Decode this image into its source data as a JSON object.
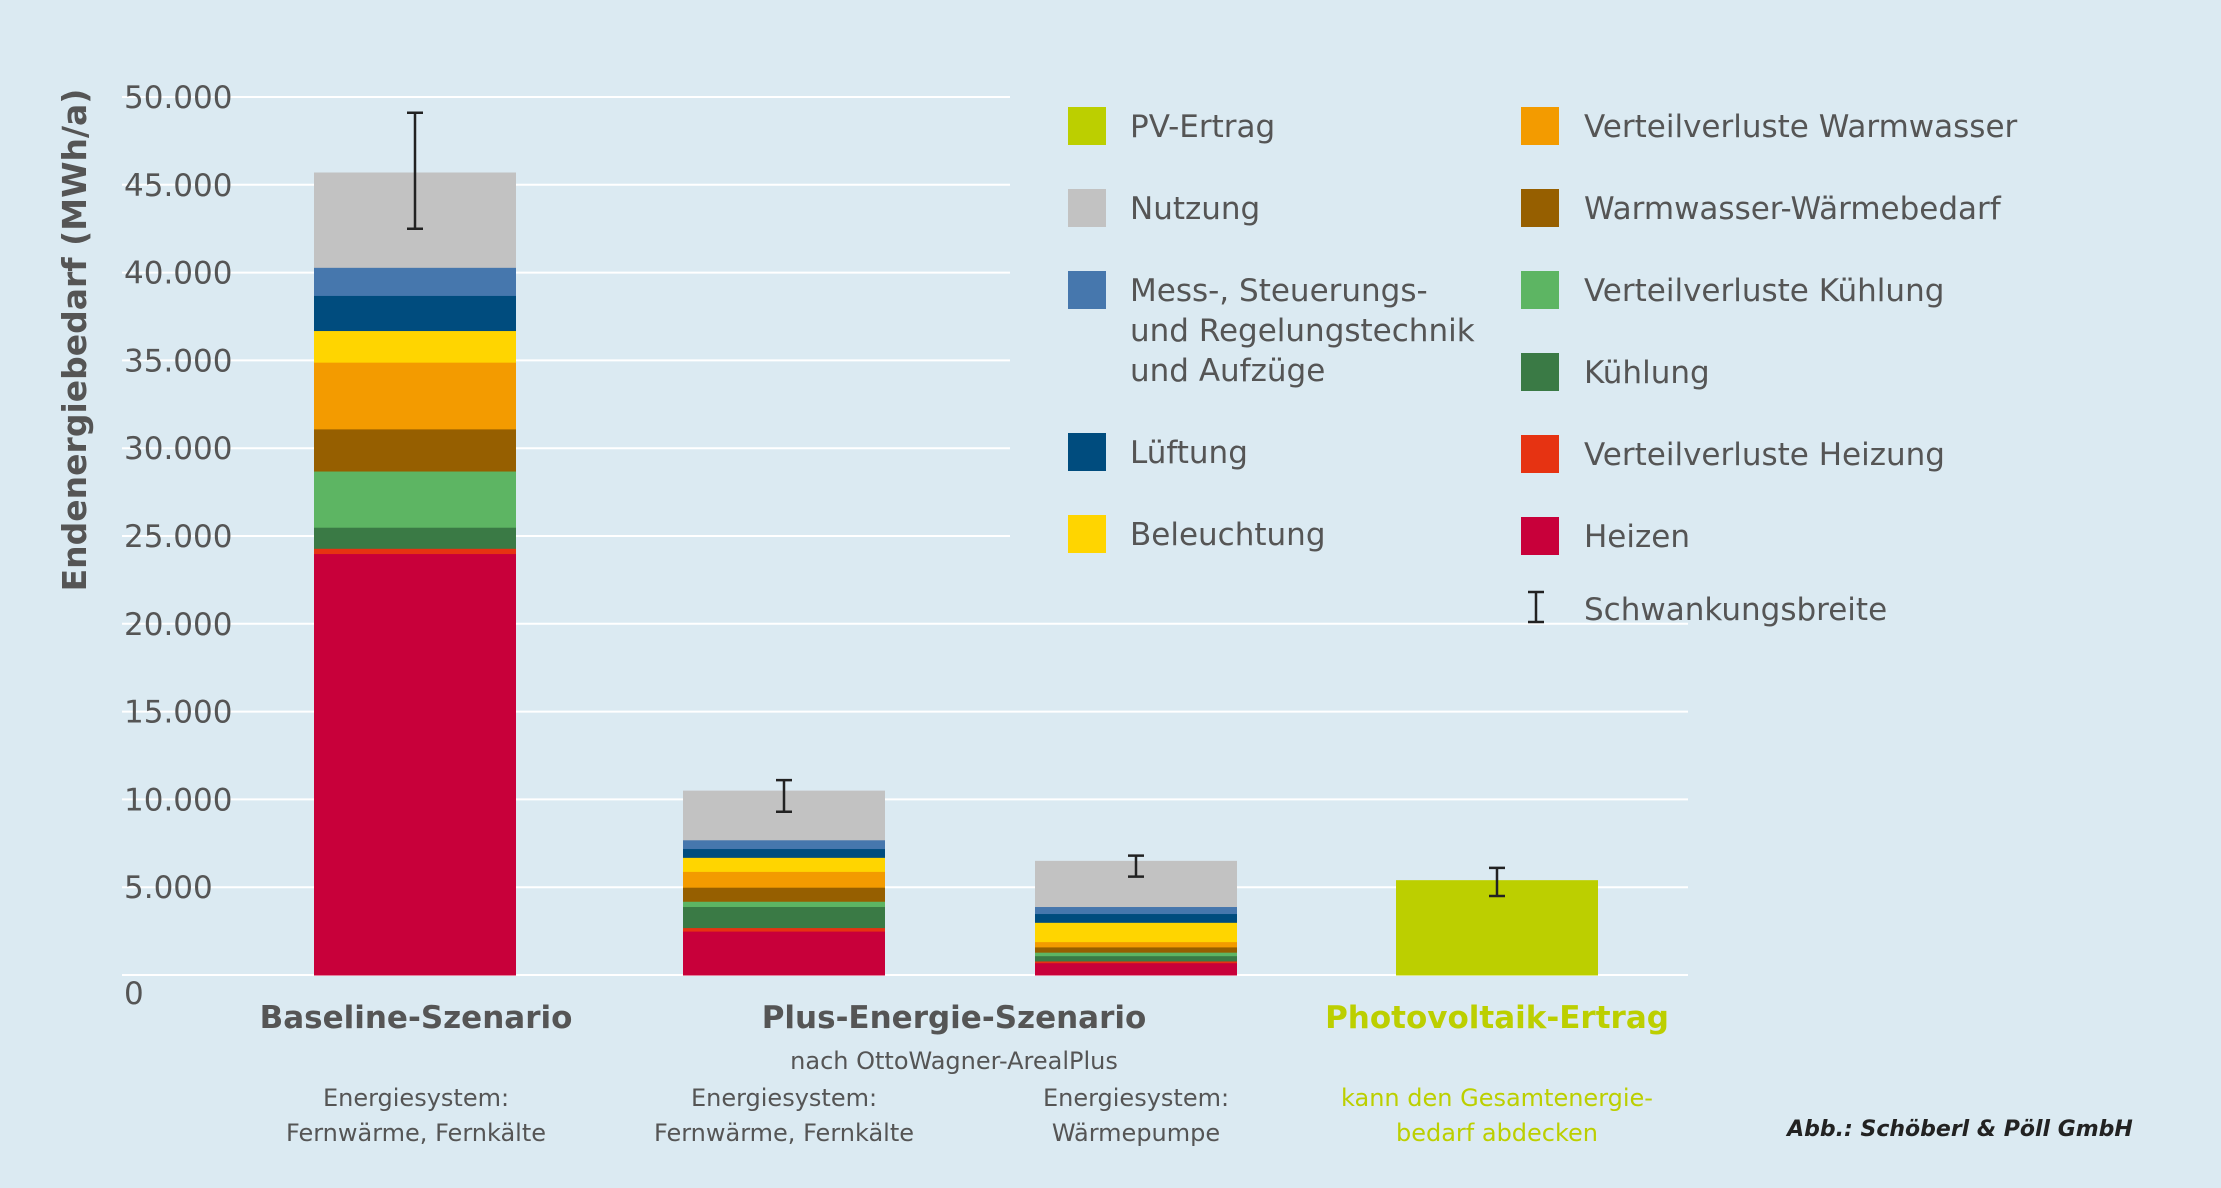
{
  "colors": {
    "background": "#dbeaf2",
    "grid": "#ffffff",
    "text": "#555555",
    "accent": "#bccf00"
  },
  "chart_data": {
    "type": "bar",
    "stacked": true,
    "ylabel": "Endenergiebedarf (MWh/a)",
    "ylim": [
      0,
      50000
    ],
    "yticks": [
      "0",
      "5.000",
      "10.000",
      "15.000",
      "20.000",
      "25.000",
      "30.000",
      "35.000",
      "40.000",
      "45.000",
      "50.000"
    ],
    "grid": true,
    "legend_placement": "top-right",
    "categories": [
      "Baseline-Szenario",
      "Plus-Energie-Szenario (Fernwärme, Fernkälte)",
      "Plus-Energie-Szenario (Wärmepumpe)",
      "Photovoltaik-Ertrag"
    ],
    "series": [
      {
        "name": "Heizen",
        "color": "#c8003a",
        "values": [
          24000,
          2500,
          700,
          0
        ]
      },
      {
        "name": "Verteilverluste Heizung",
        "color": "#e63312",
        "values": [
          300,
          200,
          100,
          0
        ]
      },
      {
        "name": "Kühlung",
        "color": "#3a7a45",
        "values": [
          1200,
          1200,
          300,
          0
        ]
      },
      {
        "name": "Verteilverluste Kühlung",
        "color": "#5db563",
        "values": [
          3200,
          300,
          200,
          0
        ]
      },
      {
        "name": "Warmwasser-Wärmebedarf",
        "color": "#965f00",
        "values": [
          2400,
          800,
          300,
          0
        ]
      },
      {
        "name": "Verteilverluste Warmwasser",
        "color": "#f39b00",
        "values": [
          3800,
          900,
          300,
          0
        ]
      },
      {
        "name": "Beleuchtung",
        "color": "#ffd500",
        "values": [
          1800,
          800,
          1100,
          0
        ]
      },
      {
        "name": "Lüftung",
        "color": "#004c7e",
        "values": [
          2000,
          500,
          500,
          0
        ]
      },
      {
        "name": "Mess-, Steuerungs- und Regelungstechnik und Aufzüge",
        "color": "#4677ad",
        "values": [
          1600,
          500,
          400,
          0
        ]
      },
      {
        "name": "Nutzung",
        "color": "#c2c2c2",
        "values": [
          5400,
          2800,
          2600,
          0
        ]
      },
      {
        "name": "PV-Ertrag",
        "color": "#bccf00",
        "values": [
          0,
          0,
          0,
          5400
        ]
      }
    ],
    "error_bars": [
      {
        "category": "Baseline-Szenario",
        "center": 45800,
        "low": 42500,
        "high": 49100
      },
      {
        "category": "Plus-Energie-Szenario (Fernwärme, Fernkälte)",
        "center": 10200,
        "low": 9300,
        "high": 11100
      },
      {
        "category": "Plus-Energie-Szenario (Wärmepumpe)",
        "center": 6200,
        "low": 5600,
        "high": 6800
      },
      {
        "category": "Photovoltaik-Ertrag",
        "center": 5400,
        "low": 4500,
        "high": 6100
      }
    ]
  },
  "legend": {
    "left": [
      {
        "label_lines": [
          "PV-Ertrag"
        ],
        "color": "#bccf00"
      },
      {
        "label_lines": [
          "Nutzung"
        ],
        "color": "#c2c2c2"
      },
      {
        "label_lines": [
          "Mess-, Steuerungs-",
          "und Regelungstechnik",
          "und Aufzüge"
        ],
        "color": "#4677ad"
      },
      {
        "label_lines": [
          "Lüftung"
        ],
        "color": "#004c7e"
      },
      {
        "label_lines": [
          "Beleuchtung"
        ],
        "color": "#ffd500"
      }
    ],
    "right": [
      {
        "label_lines": [
          "Verteilverluste Warmwasser"
        ],
        "color": "#f39b00"
      },
      {
        "label_lines": [
          "Warmwasser-Wärmebedarf"
        ],
        "color": "#965f00"
      },
      {
        "label_lines": [
          "Verteilverluste Kühlung"
        ],
        "color": "#5db563"
      },
      {
        "label_lines": [
          "Kühlung"
        ],
        "color": "#3a7a45"
      },
      {
        "label_lines": [
          "Verteilverluste Heizung"
        ],
        "color": "#e63312"
      },
      {
        "label_lines": [
          "Heizen"
        ],
        "color": "#c8003a"
      }
    ],
    "errorbar_label": "Schwankungsbreite"
  },
  "groups": {
    "baseline": {
      "title": "Baseline-Szenario",
      "line1": "Energiesystem:",
      "line2": "Fernwärme, Fernkälte"
    },
    "plus": {
      "title": "Plus-Energie-Szenario",
      "subtitle": "nach OttoWagner-ArealPlus",
      "a_line1": "Energiesystem:",
      "a_line2": "Fernwärme, Fernkälte",
      "b_line1": "Energiesystem:",
      "b_line2": "Wärmepumpe"
    },
    "pv": {
      "title": "Photovoltaik-Ertrag",
      "line1": "kann den Gesamtenergie-",
      "line2": "bedarf abdecken"
    }
  },
  "credit": "Abb.: Schöberl & Pöll GmbH"
}
